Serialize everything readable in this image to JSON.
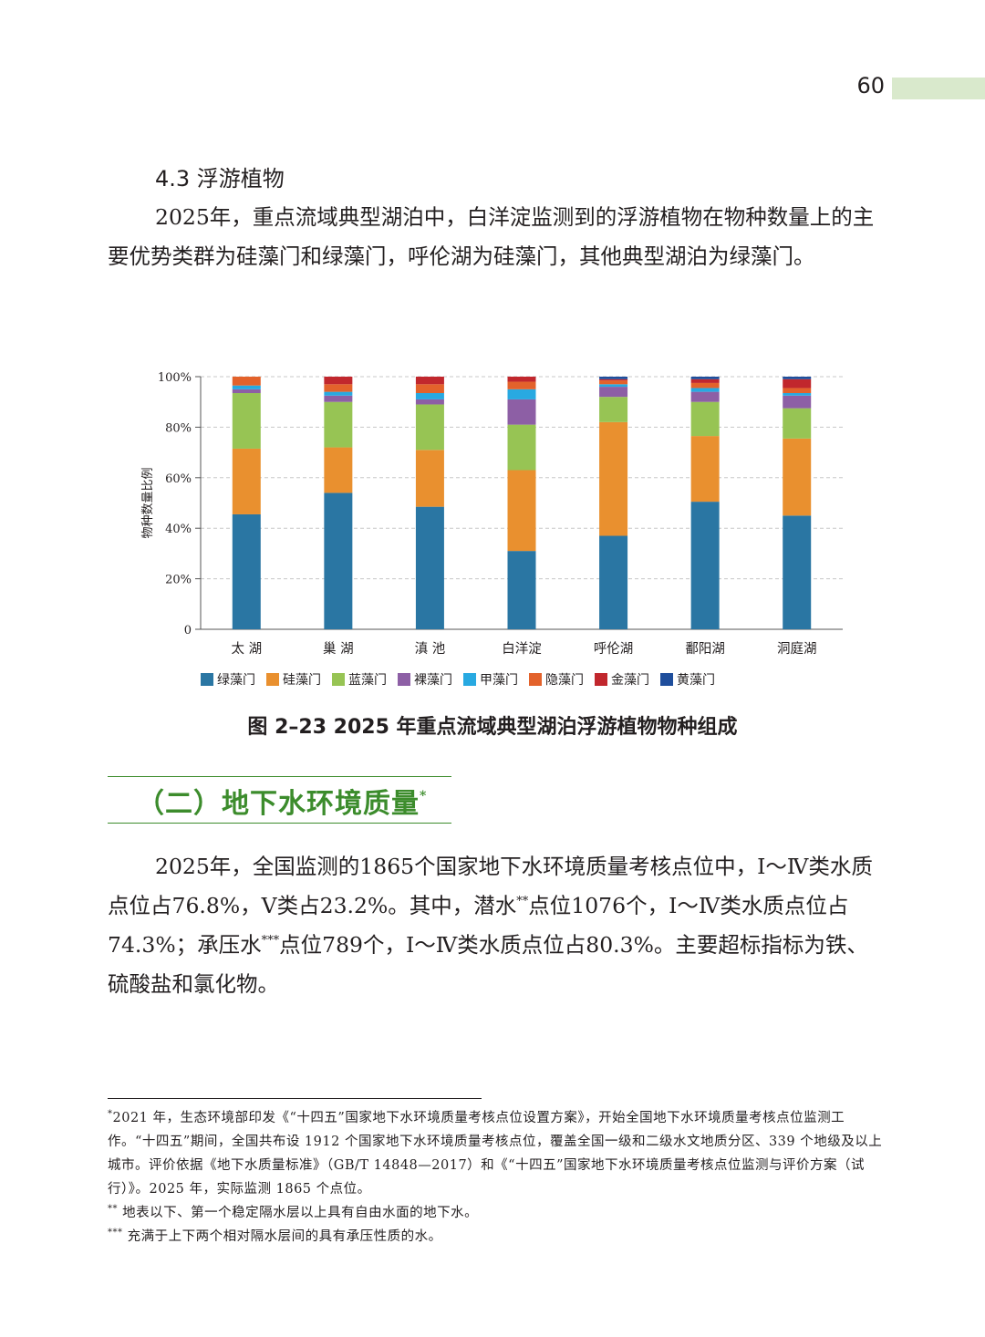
{
  "header": {
    "page_number": "60",
    "accent_color": "#d9e9cc"
  },
  "section": {
    "heading": "4.3 浮游植物"
  },
  "paragraphs": {
    "p1": "2025年，重点流域典型湖泊中，白洋淀监测到的浮游植物在物种数量上的主要优势类群为硅藻门和绿藻门，呼伦湖为硅藻门，其他典型湖泊为绿藻门。"
  },
  "chart_data": {
    "type": "bar",
    "stacked": true,
    "categories": [
      "太 湖",
      "巢 湖",
      "滇 池",
      "白洋淀",
      "呼伦湖",
      "鄱阳湖",
      "洞庭湖"
    ],
    "ylabel": "物种数量比例",
    "yticks": [
      "0",
      "20%",
      "40%",
      "60%",
      "80%",
      "100%"
    ],
    "ylim": [
      0,
      100
    ],
    "grid": true,
    "legend_position": "bottom",
    "series": [
      {
        "name": "绿藻门",
        "color": "#2a76a3",
        "values": [
          45.5,
          54,
          48.5,
          31,
          37,
          50.5,
          45
        ]
      },
      {
        "name": "硅藻门",
        "color": "#e9902f",
        "values": [
          26,
          18,
          22.5,
          32,
          45,
          26,
          30.5
        ]
      },
      {
        "name": "蓝藻门",
        "color": "#97c454",
        "values": [
          22,
          18,
          18,
          18,
          10,
          13.5,
          12
        ]
      },
      {
        "name": "裸藻门",
        "color": "#8d5fa5",
        "values": [
          1.5,
          2.5,
          2,
          10,
          4,
          4,
          5
        ]
      },
      {
        "name": "甲藻门",
        "color": "#28a9e1",
        "values": [
          1.5,
          1.5,
          2.5,
          4,
          1,
          1.5,
          1
        ]
      },
      {
        "name": "隐藻门",
        "color": "#e3622b",
        "values": [
          3.5,
          3,
          3.5,
          3,
          1.5,
          2,
          2
        ]
      },
      {
        "name": "金藻门",
        "color": "#c1272d",
        "values": [
          0,
          3,
          3,
          2,
          0.5,
          1.5,
          3.5
        ]
      },
      {
        "name": "黄藻门",
        "color": "#1f4e9c",
        "values": [
          0,
          0,
          0,
          0,
          1,
          1,
          1
        ]
      }
    ]
  },
  "figure": {
    "caption": "图 2–23  2025 年重点流域典型湖泊浮游植物物种组成"
  },
  "groundwater": {
    "heading": "（二）地下水环境质量",
    "heading_mark": "*",
    "heading_color": "#3c8c2c",
    "para_1": "2025年，全国监测的1865个国家地下水环境质量考核点位中，Ⅰ～Ⅳ类水质点位占76.8%，Ⅴ类占23.2%。其中，潜水",
    "mark_2": "**",
    "para_2": "点位1076个，Ⅰ～Ⅳ类水质点位占74.3%；承压水",
    "mark_3": "***",
    "para_3": "点位789个，Ⅰ～Ⅳ类水质点位占80.3%。主要超标指标为铁、硫酸盐和氯化物。"
  },
  "footnotes": [
    {
      "mark": "*",
      "text": "2021 年，生态环境部印发《“十四五”国家地下水环境质量考核点位设置方案》，开始全国地下水环境质量考核点位监测工作。“十四五”期间，全国共布设 1912 个国家地下水环境质量考核点位，覆盖全国一级和二级水文地质分区、339 个地级及以上城市。评价依据《地下水质量标准》（GB/T 14848—2017）和《“十四五”国家地下水环境质量考核点位监测与评价方案（试行）》。2025 年，实际监测 1865 个点位。"
    },
    {
      "mark": "**",
      "text": " 地表以下、第一个稳定隔水层以上具有自由水面的地下水。"
    },
    {
      "mark": "***",
      "text": " 充满于上下两个相对隔水层间的具有承压性质的水。"
    }
  ]
}
